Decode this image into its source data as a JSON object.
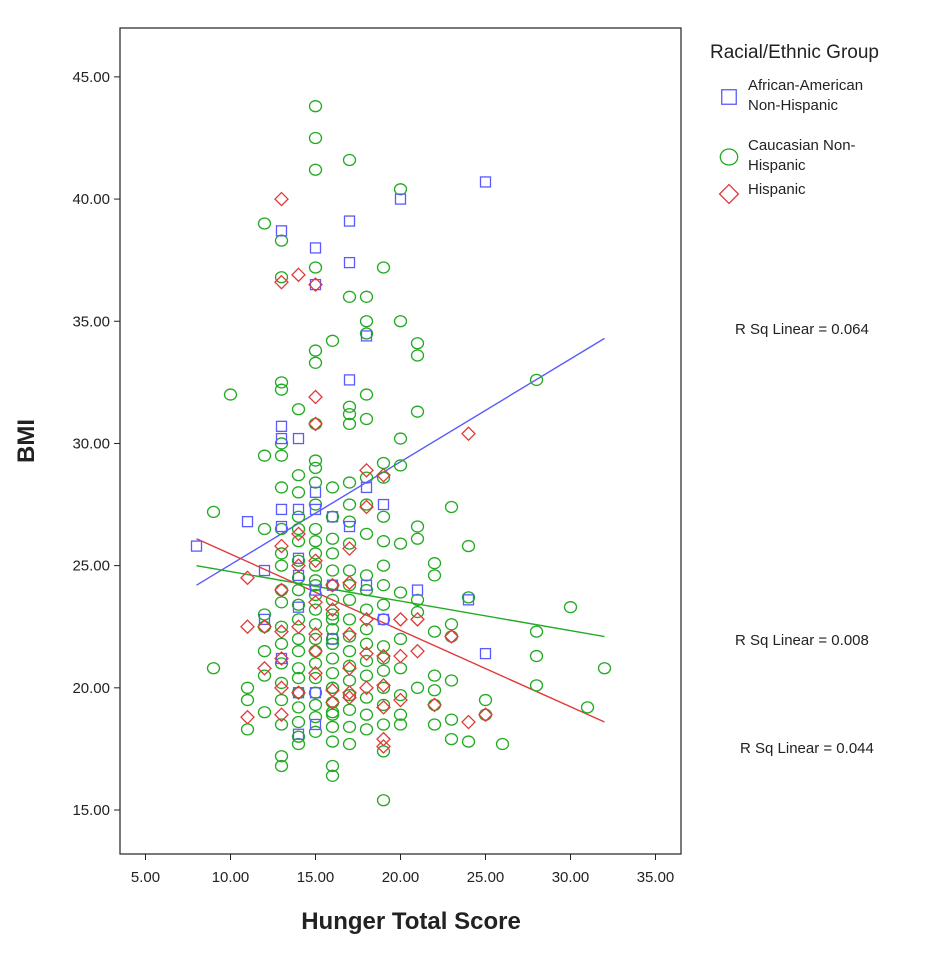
{
  "chart_data": {
    "type": "scatter",
    "title": "",
    "xlabel": "Hunger Total Score",
    "ylabel": "BMI",
    "xlim": [
      3.5,
      36.5
    ],
    "ylim": [
      13.2,
      47.0
    ],
    "x_ticks": [
      5,
      10,
      15,
      20,
      25,
      30,
      35
    ],
    "y_ticks": [
      15,
      20,
      25,
      30,
      35,
      40,
      45
    ],
    "x_tick_labels": [
      "5.00",
      "10.00",
      "15.00",
      "20.00",
      "25.00",
      "30.00",
      "35.00"
    ],
    "y_tick_labels": [
      "15.00",
      "20.00",
      "25.00",
      "30.00",
      "35.00",
      "40.00",
      "45.00"
    ],
    "grid": false,
    "legend": {
      "title": "Racial/Ethnic Group",
      "placement": "right"
    },
    "series": [
      {
        "name": "African-American Non-Hispanic",
        "legend_lines": [
          "African-American",
          "Non-Hispanic"
        ],
        "marker": "square",
        "color": "#5a5aff",
        "x": [
          8,
          11,
          12,
          12,
          13,
          13,
          13,
          13,
          13,
          13,
          14,
          14,
          14,
          14,
          14,
          14,
          14,
          15,
          15,
          15,
          15,
          15,
          15,
          15,
          16,
          16,
          16,
          17,
          17,
          17,
          17,
          18,
          18,
          18,
          19,
          19,
          20,
          21,
          24,
          25,
          25
        ],
        "y": [
          25.8,
          26.8,
          24.8,
          22.8,
          38.7,
          30.7,
          30.2,
          27.3,
          26.6,
          21.2,
          30.2,
          27.3,
          25.3,
          24.6,
          23.3,
          19.8,
          18.1,
          38.0,
          36.5,
          28.0,
          27.3,
          24.0,
          19.8,
          18.5,
          27.0,
          24.2,
          22.0,
          39.1,
          37.4,
          32.6,
          26.6,
          34.4,
          28.2,
          24.2,
          27.5,
          22.8,
          40.0,
          24.0,
          23.6,
          40.7,
          21.4
        ],
        "fit": {
          "x": [
            8,
            32
          ],
          "y": [
            24.2,
            34.3
          ],
          "r2_label": "R Sq Linear = 0.064"
        }
      },
      {
        "name": "Caucasian Non-Hispanic",
        "legend_lines": [
          "Caucasian Non-",
          "Hispanic"
        ],
        "marker": "circle",
        "color": "#22aa22",
        "x": [
          9,
          9,
          10,
          11,
          11,
          11,
          12,
          12,
          12,
          12,
          12,
          12,
          12,
          12,
          13,
          13,
          13,
          13,
          13,
          13,
          13,
          13,
          13,
          13,
          13,
          13,
          13,
          13,
          13,
          13,
          13,
          13,
          13,
          13,
          14,
          14,
          14,
          14,
          14,
          14,
          14,
          14,
          14,
          14,
          14,
          14,
          14,
          14,
          14,
          14,
          14,
          14,
          14,
          14,
          15,
          15,
          15,
          15,
          15,
          15,
          15,
          15,
          15,
          15,
          15,
          15,
          15,
          15,
          15,
          15,
          15,
          15,
          15,
          15,
          15,
          15,
          15,
          15,
          15,
          15,
          15,
          15,
          16,
          16,
          16,
          16,
          16,
          16,
          16,
          16,
          16,
          16,
          16,
          16,
          16,
          16,
          16,
          16,
          16,
          16,
          16,
          16,
          16,
          16,
          16,
          16,
          17,
          17,
          17,
          17,
          17,
          17,
          17,
          17,
          17,
          17,
          17,
          17,
          17,
          17,
          17,
          17,
          17,
          17,
          17,
          17,
          17,
          18,
          18,
          18,
          18,
          18,
          18,
          18,
          18,
          18,
          18,
          18,
          18,
          18,
          18,
          18,
          18,
          18,
          18,
          19,
          19,
          19,
          19,
          19,
          19,
          19,
          19,
          19,
          19,
          19,
          19,
          19,
          19,
          19,
          19,
          19,
          20,
          20,
          20,
          20,
          20,
          20,
          20,
          20,
          20,
          20,
          20,
          21,
          21,
          21,
          21,
          21,
          21,
          21,
          21,
          22,
          22,
          22,
          22,
          22,
          22,
          22,
          23,
          23,
          23,
          23,
          23,
          23,
          24,
          24,
          24,
          25,
          25,
          26,
          28,
          28,
          28,
          28,
          30,
          31,
          32
        ],
        "y": [
          27.2,
          20.8,
          32.0,
          20.0,
          19.5,
          18.3,
          39.0,
          29.5,
          26.5,
          23.0,
          21.5,
          20.5,
          19.0,
          22.5,
          38.3,
          36.8,
          32.5,
          32.2,
          30.0,
          29.5,
          28.2,
          26.5,
          25.0,
          24.0,
          23.5,
          22.5,
          21.8,
          21.0,
          20.2,
          19.5,
          18.5,
          17.2,
          16.8,
          25.5,
          31.4,
          28.7,
          28.0,
          27.0,
          26.0,
          25.2,
          24.5,
          24.0,
          23.4,
          22.8,
          22.0,
          21.5,
          20.8,
          20.4,
          19.8,
          19.2,
          18.6,
          18.0,
          17.7,
          26.5,
          43.8,
          42.5,
          41.2,
          37.2,
          33.8,
          33.3,
          30.8,
          29.3,
          29.0,
          28.4,
          27.5,
          26.5,
          26.0,
          25.5,
          25.0,
          24.4,
          23.8,
          23.2,
          22.6,
          22.0,
          21.5,
          21.0,
          20.4,
          19.8,
          19.3,
          18.8,
          18.2,
          24.2,
          34.2,
          28.2,
          27.0,
          26.1,
          25.5,
          24.8,
          24.2,
          23.6,
          23.0,
          22.4,
          21.8,
          21.2,
          20.6,
          20.0,
          19.4,
          18.9,
          18.4,
          17.8,
          16.8,
          16.4,
          22.0,
          19.0,
          22.8,
          20.0,
          41.6,
          36.0,
          31.5,
          31.2,
          30.8,
          28.4,
          27.5,
          26.8,
          25.9,
          24.8,
          24.2,
          23.6,
          22.8,
          22.1,
          21.5,
          20.9,
          20.3,
          19.7,
          19.1,
          18.4,
          17.7,
          36.0,
          35.0,
          34.5,
          32.0,
          31.0,
          28.6,
          27.5,
          26.3,
          24.6,
          24.0,
          23.2,
          22.4,
          21.8,
          21.1,
          20.5,
          19.6,
          18.9,
          18.3,
          37.2,
          29.2,
          28.6,
          27.0,
          26.0,
          25.0,
          24.2,
          23.4,
          22.8,
          21.7,
          21.2,
          20.7,
          20.0,
          19.3,
          18.5,
          17.4,
          15.4,
          40.4,
          35.0,
          30.2,
          29.1,
          25.9,
          23.9,
          22.0,
          20.8,
          19.7,
          18.9,
          18.5,
          34.1,
          33.6,
          31.3,
          26.6,
          26.1,
          23.6,
          23.1,
          20.0,
          25.1,
          24.6,
          22.3,
          20.5,
          19.9,
          19.3,
          18.5,
          27.4,
          22.6,
          22.1,
          20.3,
          18.7,
          17.9,
          25.8,
          23.7,
          17.8,
          19.5,
          18.9,
          17.7,
          32.6,
          22.3,
          21.3,
          20.1,
          23.3,
          19.2,
          20.8
        ],
        "fit": {
          "x": [
            8,
            32
          ],
          "y": [
            25.0,
            22.1
          ],
          "r2_label": "R Sq Linear = 0.008"
        }
      },
      {
        "name": "Hispanic",
        "legend_lines": [
          "Hispanic"
        ],
        "marker": "diamond",
        "color": "#e03a3a",
        "x": [
          11,
          11,
          11,
          12,
          12,
          13,
          13,
          13,
          13,
          13,
          13,
          13,
          13,
          14,
          14,
          14,
          14,
          14,
          15,
          15,
          15,
          15,
          15,
          15,
          15,
          15,
          16,
          16,
          16,
          16,
          17,
          17,
          17,
          17,
          17,
          17,
          18,
          18,
          18,
          18,
          18,
          19,
          19,
          19,
          19,
          19,
          19,
          20,
          20,
          20,
          21,
          21,
          22,
          23,
          24,
          24,
          25
        ],
        "y": [
          24.5,
          22.5,
          18.8,
          20.8,
          22.5,
          40.0,
          36.6,
          25.8,
          24.0,
          22.3,
          21.2,
          20.0,
          18.9,
          36.9,
          26.3,
          25.0,
          22.5,
          19.8,
          36.5,
          31.9,
          30.8,
          25.2,
          23.5,
          22.2,
          21.5,
          20.6,
          24.2,
          23.2,
          19.9,
          19.4,
          25.7,
          24.3,
          22.2,
          20.8,
          19.8,
          19.6,
          28.9,
          27.4,
          22.8,
          21.4,
          20.0,
          28.7,
          21.3,
          20.1,
          19.2,
          17.9,
          17.6,
          22.8,
          21.3,
          19.5,
          22.8,
          21.5,
          19.3,
          22.1,
          30.4,
          18.6,
          18.9
        ],
        "fit": {
          "x": [
            8,
            32
          ],
          "y": [
            26.1,
            18.6
          ],
          "r2_label": "R Sq Linear = 0.044"
        }
      }
    ]
  }
}
